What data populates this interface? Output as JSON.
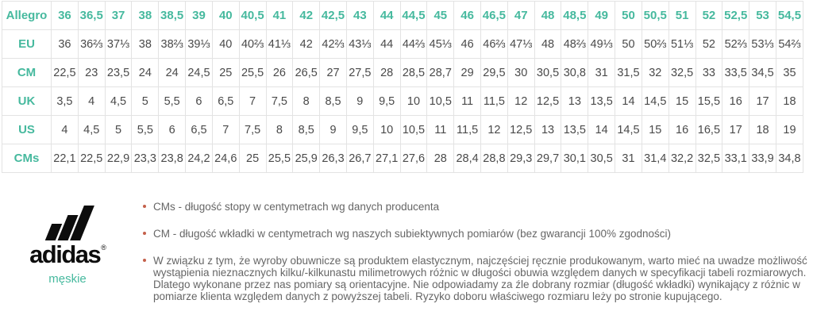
{
  "theme": {
    "accent_teal": "#46b99e",
    "bullet_red": "#c4604b",
    "cell_text_color": "#4a4a4a",
    "border_color": "#e3e3e3",
    "logo_black": "#0d0d0d"
  },
  "size_table": {
    "rows": [
      {
        "label": "Allegro",
        "is_header": true,
        "values": [
          "36",
          "36,5",
          "37",
          "38",
          "38,5",
          "39",
          "40",
          "40,5",
          "41",
          "42",
          "42,5",
          "43",
          "44",
          "44,5",
          "45",
          "46",
          "46,5",
          "47",
          "48",
          "48,5",
          "49",
          "50",
          "50,5",
          "51",
          "52",
          "52,5",
          "53",
          "54,5"
        ]
      },
      {
        "label": "EU",
        "is_header": false,
        "values": [
          "36",
          "36⅔",
          "37⅓",
          "38",
          "38⅔",
          "39⅓",
          "40",
          "40⅔",
          "41⅓",
          "42",
          "42⅔",
          "43⅓",
          "44",
          "44⅔",
          "45⅓",
          "46",
          "46⅔",
          "47⅓",
          "48",
          "48⅔",
          "49⅓",
          "50",
          "50⅔",
          "51⅓",
          "52",
          "52⅔",
          "53⅓",
          "54⅔"
        ]
      },
      {
        "label": "CM",
        "is_header": false,
        "values": [
          "22,5",
          "23",
          "23,5",
          "24",
          "24",
          "24,5",
          "25",
          "25,5",
          "26",
          "26,5",
          "27",
          "27,5",
          "28",
          "28,5",
          "28,7",
          "29",
          "29,5",
          "30",
          "30,5",
          "30,8",
          "31",
          "31,5",
          "32",
          "32,5",
          "33",
          "33,5",
          "34,5",
          "35"
        ]
      },
      {
        "label": "UK",
        "is_header": false,
        "values": [
          "3,5",
          "4",
          "4,5",
          "5",
          "5,5",
          "6",
          "6,5",
          "7",
          "7,5",
          "8",
          "8,5",
          "9",
          "9,5",
          "10",
          "10,5",
          "11",
          "11,5",
          "12",
          "12,5",
          "13",
          "13,5",
          "14",
          "14,5",
          "15",
          "15,5",
          "16",
          "17",
          "18"
        ]
      },
      {
        "label": "US",
        "is_header": false,
        "values": [
          "4",
          "4,5",
          "5",
          "5,5",
          "6",
          "6,5",
          "7",
          "7,5",
          "8",
          "8,5",
          "9",
          "9,5",
          "10",
          "10,5",
          "11",
          "11,5",
          "12",
          "12,5",
          "13",
          "13,5",
          "14",
          "14,5",
          "15",
          "16",
          "16,5",
          "17",
          "18",
          "19"
        ]
      },
      {
        "label": "CMs",
        "is_header": false,
        "values": [
          "22,1",
          "22,5",
          "22,9",
          "23,3",
          "23,8",
          "24,2",
          "24,6",
          "25",
          "25,5",
          "25,9",
          "26,3",
          "26,7",
          "27,1",
          "27,6",
          "28",
          "28,4",
          "28,8",
          "29,3",
          "29,7",
          "30,1",
          "30,5",
          "31",
          "31,4",
          "32,2",
          "32,5",
          "33,1",
          "33,9",
          "34,8"
        ]
      }
    ]
  },
  "brand": {
    "logo_icon": "adidas-three-stripes-logo",
    "wordmark": "adidas",
    "registered_mark": "®",
    "category_label": "męskie"
  },
  "notes": [
    "CMs - długość stopy w centymetrach wg danych producenta",
    "CM - długość wkładki w centymetrach wg naszych subiektywnych pomiarów (bez gwarancji 100% zgodności)",
    "W związku z tym, że wyroby obuwnicze są produktem elastycznym, najczęściej ręcznie produkowanym, warto mieć na uwadze możliwość wystąpienia nieznacznych kilku/-kilkunastu milimetrowych różnic w długości obuwia względem danych w specyfikacji tabeli rozmiarowych. Dlatego wykonane przez nas pomiary są orientacyjne. Nie odpowiadamy za źle dobrany rozmiar (długość wkładki) wynikający z różnic w pomiarze klienta względem danych z powyższej tabeli. Ryzyko doboru właściwego rozmiaru leży po stronie kupującego."
  ]
}
